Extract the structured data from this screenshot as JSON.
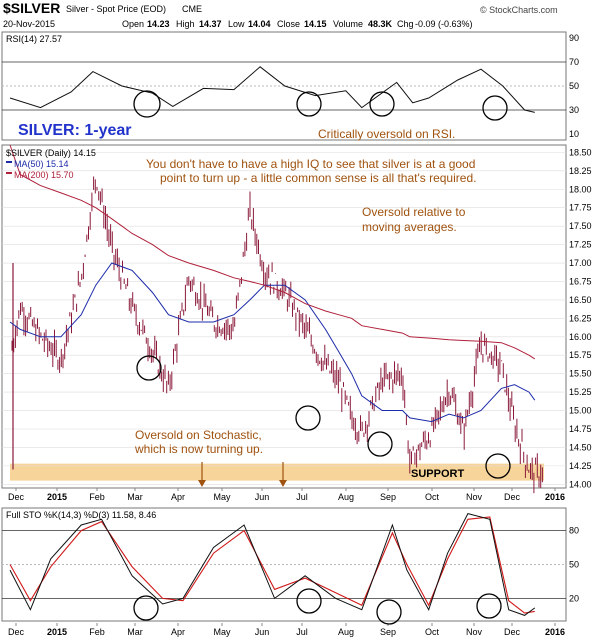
{
  "header": {
    "symbol": "$SILVER",
    "description": "Silver - Spot Price (EOD)",
    "exchange": "CME",
    "date": "20-Nov-2015",
    "open_label": "Open",
    "open": "14.23",
    "high_label": "High",
    "high": "14.37",
    "low_label": "Low",
    "low": "14.04",
    "close_label": "Close",
    "close": "14.15",
    "volume_label": "Volume",
    "volume": "48.3K",
    "chg_label": "Chg",
    "chg": "-0.09 (-0.63%)",
    "brand": "© StockCharts.com"
  },
  "rsi_panel": {
    "label": "RSI(14) 27.57",
    "ticks": [
      "90",
      "70",
      "50",
      "30",
      "10"
    ],
    "colors": {
      "line": "#111111",
      "circle": "#000000"
    }
  },
  "price_panel": {
    "label": "$SILVER (Daily) 14.15",
    "legend": [
      {
        "text": "MA(50) 15.14",
        "color": "#1c2ba8"
      },
      {
        "text": "MA(200) 15.70",
        "color": "#b0203a"
      }
    ],
    "ticks": [
      "18.50",
      "18.25",
      "18.00",
      "17.75",
      "17.50",
      "17.25",
      "17.00",
      "16.75",
      "16.50",
      "16.25",
      "16.00",
      "15.75",
      "15.50",
      "15.25",
      "15.00",
      "14.75",
      "14.50",
      "14.25",
      "14.00"
    ],
    "support_band_color": "#f7d59a",
    "bar_color": "#8b1a3a"
  },
  "stoch_panel": {
    "label": "Full STO %K(14,3) %D(3) 11.58, 8.46",
    "ticks": [
      "80",
      "50",
      "20"
    ],
    "colors": {
      "k": "#111111",
      "d": "#d01818"
    }
  },
  "x_axis": {
    "months": [
      "Dec",
      "2015",
      "Feb",
      "Mar",
      "Apr",
      "May",
      "Jun",
      "Jul",
      "Aug",
      "Sep",
      "Oct",
      "Nov",
      "Dec",
      "2016"
    ]
  },
  "annotations": {
    "title": "SILVER: 1-year",
    "rsi_note": "Critically oversold on RSI.",
    "iq_note_1": "You don't have to have a high IQ to see that silver is at a good",
    "iq_note_2": "point to turn up - a little common sense is all that's required.",
    "ma_note_1": "Oversold relative to",
    "ma_note_2": "moving  averages.",
    "stoch_note_1": "Oversold on Stochastic,",
    "stoch_note_2": "which is now turning up.",
    "support_label": "SUPPORT"
  },
  "chart_data": [
    {
      "type": "line",
      "title": "RSI(14)",
      "x": [
        "2014-11-24",
        "2014-12-15",
        "2015-01-05",
        "2015-01-20",
        "2015-02-09",
        "2015-03-02",
        "2015-03-16",
        "2015-04-06",
        "2015-04-27",
        "2015-05-15",
        "2015-06-01",
        "2015-06-22",
        "2015-07-13",
        "2015-07-24",
        "2015-08-17",
        "2015-08-28",
        "2015-09-08",
        "2015-09-28",
        "2015-10-14",
        "2015-10-29",
        "2015-11-13",
        "2015-11-20"
      ],
      "series": [
        {
          "name": "RSI(14)",
          "values": [
            40,
            32,
            45,
            62,
            50,
            44,
            33,
            48,
            47,
            66,
            50,
            42,
            46,
            32,
            53,
            36,
            40,
            55,
            64,
            50,
            30,
            28
          ]
        }
      ],
      "ylim": [
        10,
        90
      ]
    },
    {
      "type": "bar",
      "title": "$SILVER (Daily)",
      "ylabel": "",
      "ylim": [
        13.95,
        18.6
      ],
      "x": [
        "2014-11-24",
        "2014-12-01",
        "2014-12-15",
        "2014-12-29",
        "2015-01-12",
        "2015-01-22",
        "2015-02-02",
        "2015-02-16",
        "2015-03-02",
        "2015-03-13",
        "2015-03-27",
        "2015-04-13",
        "2015-04-27",
        "2015-05-08",
        "2015-05-18",
        "2015-06-01",
        "2015-06-15",
        "2015-06-29",
        "2015-07-08",
        "2015-07-17",
        "2015-07-24",
        "2015-08-07",
        "2015-08-21",
        "2015-08-26",
        "2015-09-10",
        "2015-09-22",
        "2015-10-02",
        "2015-10-14",
        "2015-10-28",
        "2015-11-06",
        "2015-11-16",
        "2015-11-20"
      ],
      "series": [
        {
          "name": "Close",
          "values": [
            15.7,
            16.4,
            16.0,
            15.7,
            16.8,
            18.2,
            17.2,
            16.4,
            15.8,
            15.3,
            16.8,
            16.2,
            16.1,
            17.7,
            16.9,
            16.6,
            16.1,
            15.6,
            15.4,
            14.9,
            14.7,
            15.4,
            15.5,
            14.3,
            14.7,
            15.3,
            14.7,
            15.9,
            15.6,
            14.8,
            14.2,
            14.15
          ]
        },
        {
          "name": "MA(50)",
          "values": [
            16.2,
            16.1,
            16.0,
            16.0,
            16.3,
            16.7,
            17.0,
            16.9,
            16.6,
            16.3,
            16.2,
            16.2,
            16.3,
            16.5,
            16.7,
            16.7,
            16.5,
            16.1,
            15.8,
            15.5,
            15.2,
            15.0,
            15.0,
            14.9,
            14.85,
            14.95,
            14.9,
            15.0,
            15.3,
            15.35,
            15.25,
            15.14
          ]
        },
        {
          "name": "MA(200)",
          "values": [
            18.6,
            18.2,
            18.05,
            17.95,
            17.85,
            17.75,
            17.6,
            17.4,
            17.25,
            17.1,
            17.0,
            16.9,
            16.8,
            16.75,
            16.7,
            16.6,
            16.45,
            16.35,
            16.3,
            16.25,
            16.15,
            16.1,
            16.05,
            16.0,
            15.98,
            15.96,
            15.95,
            15.94,
            15.92,
            15.85,
            15.75,
            15.7
          ]
        }
      ],
      "support_zone": [
        14.05,
        14.28
      ]
    },
    {
      "type": "line",
      "title": "Full STO %K(14,3) %D(3)",
      "x": [
        "2014-11-24",
        "2014-12-08",
        "2014-12-22",
        "2015-01-12",
        "2015-01-26",
        "2015-02-16",
        "2015-03-09",
        "2015-03-23",
        "2015-04-13",
        "2015-05-04",
        "2015-05-25",
        "2015-06-15",
        "2015-07-06",
        "2015-07-24",
        "2015-08-14",
        "2015-08-24",
        "2015-09-08",
        "2015-09-21",
        "2015-10-05",
        "2015-10-20",
        "2015-11-02",
        "2015-11-13",
        "2015-11-20"
      ],
      "series": [
        {
          "name": "%K",
          "values": [
            45,
            10,
            55,
            85,
            90,
            40,
            15,
            20,
            65,
            85,
            20,
            40,
            20,
            10,
            85,
            45,
            10,
            60,
            95,
            90,
            10,
            5,
            11.58
          ]
        },
        {
          "name": "%D",
          "values": [
            50,
            18,
            48,
            80,
            88,
            48,
            20,
            18,
            60,
            80,
            28,
            38,
            25,
            14,
            78,
            50,
            14,
            55,
            90,
            92,
            18,
            7,
            8.46
          ]
        }
      ],
      "ylim": [
        0,
        100
      ]
    }
  ]
}
